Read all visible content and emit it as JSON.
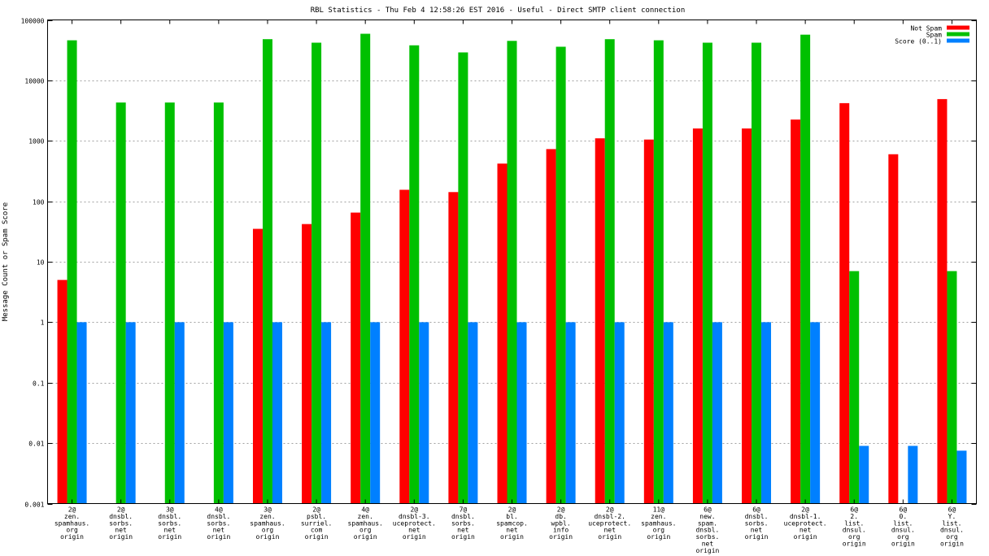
{
  "chart_data": {
    "type": "bar",
    "title": "RBL Statistics - Thu Feb  4 12:58:26 EST 2016 - Useful - Direct SMTP client connection",
    "xlabel": "",
    "ylabel": "Message Count or Spam Score",
    "yscale": "log",
    "ylim": [
      0.001,
      100000
    ],
    "yticks": [
      {
        "value": 100000,
        "label": "100000"
      },
      {
        "value": 10000,
        "label": "10000"
      },
      {
        "value": 1000,
        "label": "1000"
      },
      {
        "value": 100,
        "label": "100"
      },
      {
        "value": 10,
        "label": "10"
      },
      {
        "value": 1,
        "label": "1"
      },
      {
        "value": 0.1,
        "label": "0.1"
      },
      {
        "value": 0.01,
        "label": "0.01"
      },
      {
        "value": 0.001,
        "label": "0.001"
      }
    ],
    "grid": true,
    "legend_position": "top-right",
    "categories": [
      [
        "2@",
        "zen.",
        "spamhaus.",
        "org",
        "origin"
      ],
      [
        "2@",
        "dnsbl.",
        "sorbs.",
        "net",
        "origin"
      ],
      [
        "3@",
        "dnsbl.",
        "sorbs.",
        "net",
        "origin"
      ],
      [
        "4@",
        "dnsbl.",
        "sorbs.",
        "net",
        "origin"
      ],
      [
        "3@",
        "zen.",
        "spamhaus.",
        "org",
        "origin"
      ],
      [
        "2@",
        "psbl.",
        "surriel.",
        "com",
        "origin"
      ],
      [
        "4@",
        "zen.",
        "spamhaus.",
        "org",
        "origin"
      ],
      [
        "2@",
        "dnsbl-3.",
        "uceprotect.",
        "net",
        "origin"
      ],
      [
        "7@",
        "dnsbl.",
        "sorbs.",
        "net",
        "origin"
      ],
      [
        "2@",
        "bl.",
        "spamcop.",
        "net",
        "origin"
      ],
      [
        "2@",
        "db.",
        "wpbl.",
        "info",
        "origin"
      ],
      [
        "2@",
        "dnsbl-2.",
        "uceprotect.",
        "net",
        "origin"
      ],
      [
        "11@",
        "zen.",
        "spamhaus.",
        "org",
        "origin"
      ],
      [
        "6@",
        "new.",
        "spam.",
        "dnsbl.",
        "sorbs.",
        "net",
        "origin"
      ],
      [
        "6@",
        "dnsbl.",
        "sorbs.",
        "net",
        "origin"
      ],
      [
        "2@",
        "dnsbl-1.",
        "uceprotect.",
        "net",
        "origin"
      ],
      [
        "6@",
        "2.",
        "list.",
        "dnsul.",
        "org",
        "origin"
      ],
      [
        "6@",
        "0.",
        "list.",
        "dnsul.",
        "org",
        "origin"
      ],
      [
        "6@",
        "Y.",
        "list.",
        "dnsul.",
        "org",
        "origin"
      ]
    ],
    "series": [
      {
        "name": "Not Spam",
        "color": "#ff0000",
        "values": [
          5,
          null,
          null,
          null,
          35,
          42,
          65,
          155,
          142,
          420,
          730,
          1100,
          1050,
          1600,
          1600,
          2250,
          4200,
          600,
          4900
        ]
      },
      {
        "name": "Spam",
        "color": "#00c000",
        "values": [
          46000,
          4300,
          4300,
          4300,
          48000,
          42000,
          59000,
          38000,
          29000,
          45000,
          36000,
          48000,
          46000,
          42000,
          42000,
          57000,
          7,
          null,
          7
        ]
      },
      {
        "name": "Score (0..1)",
        "color": "#0080ff",
        "values": [
          1,
          1,
          1,
          1,
          1,
          1,
          1,
          1,
          1,
          1,
          1,
          1,
          1,
          1,
          1,
          1,
          0.009,
          0.009,
          0.0075
        ]
      }
    ]
  }
}
